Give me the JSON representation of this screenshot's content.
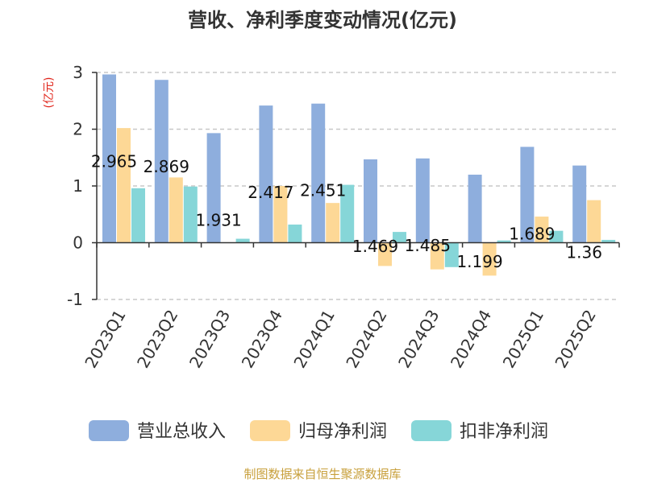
{
  "colors": {
    "revenue": "#8eaedd",
    "net_profit": "#fdd896",
    "deducted_profit": "#86d6d8",
    "axis": "#333333",
    "grid": "#c8c8c8",
    "unit": "#e0251b",
    "source": "#c8a03c"
  },
  "chart_data": {
    "type": "bar",
    "title": "营收、净利季度变动情况(亿元)",
    "ylabel": "(亿元)",
    "xlabel": "",
    "ylim": [
      -1,
      3
    ],
    "yticks": [
      -1,
      0,
      1,
      2,
      3
    ],
    "grid": true,
    "legend_position": "bottom",
    "categories": [
      "2023Q1",
      "2023Q2",
      "2023Q3",
      "2023Q4",
      "2024Q1",
      "2024Q2",
      "2024Q3",
      "2024Q4",
      "2025Q1",
      "2025Q2"
    ],
    "series": [
      {
        "name": "营业总收入",
        "color_key": "revenue",
        "values": [
          2.965,
          2.869,
          1.931,
          2.417,
          2.451,
          1.469,
          1.485,
          1.199,
          1.689,
          1.36
        ],
        "labels": [
          "2.965",
          "2.869",
          "1.931",
          "2.417",
          "2.451",
          "1.469",
          "1.485",
          "1.199",
          "1.689",
          "1.36"
        ]
      },
      {
        "name": "归母净利润",
        "color_key": "net_profit",
        "values": [
          2.02,
          1.15,
          0.0,
          1.0,
          0.7,
          -0.41,
          -0.47,
          -0.58,
          0.46,
          0.75
        ]
      },
      {
        "name": "扣非净利润",
        "color_key": "deducted_profit",
        "values": [
          0.96,
          0.99,
          0.07,
          0.32,
          1.02,
          0.19,
          -0.43,
          0.04,
          0.21,
          0.05
        ]
      }
    ]
  },
  "source_text": "制图数据来自恒生聚源数据库"
}
